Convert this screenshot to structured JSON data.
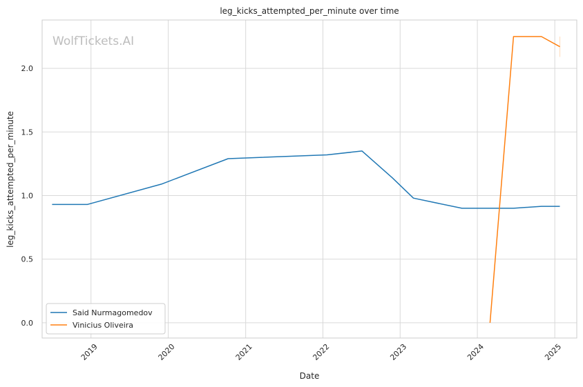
{
  "chart_data": {
    "type": "line",
    "title": "leg_kicks_attempted_per_minute over time",
    "xlabel": "Date",
    "ylabel": "leg_kicks_attempted_per_minute",
    "watermark": "WolfTickets.AI",
    "x_ticks": [
      "2019",
      "2020",
      "2021",
      "2022",
      "2023",
      "2024",
      "2025"
    ],
    "y_ticks": [
      "0.0",
      "0.5",
      "1.0",
      "1.5",
      "2.0"
    ],
    "ylim": [
      -0.12,
      2.38
    ],
    "xlim": [
      "2018-05-15",
      "2025-04-15"
    ],
    "grid": true,
    "legend_position": "lower-left",
    "series": [
      {
        "name": "Said Nurmagomedov",
        "color": "#1f77b4",
        "points": [
          {
            "x": "2018-07-01",
            "y": 0.93
          },
          {
            "x": "2018-12-15",
            "y": 0.93
          },
          {
            "x": "2019-11-30",
            "y": 1.09
          },
          {
            "x": "2020-10-10",
            "y": 1.29
          },
          {
            "x": "2022-01-20",
            "y": 1.32
          },
          {
            "x": "2022-07-05",
            "y": 1.35
          },
          {
            "x": "2022-11-25",
            "y": 1.14
          },
          {
            "x": "2023-03-05",
            "y": 0.98
          },
          {
            "x": "2023-10-20",
            "y": 0.9
          },
          {
            "x": "2024-06-20",
            "y": 0.9
          },
          {
            "x": "2024-10-30",
            "y": 0.915
          },
          {
            "x": "2025-01-25",
            "y": 0.915
          }
        ]
      },
      {
        "name": "Vinicius Oliveira",
        "color": "#ff7f0e",
        "points": [
          {
            "x": "2024-03-01",
            "y": 0.0
          },
          {
            "x": "2024-06-20",
            "y": 2.25
          },
          {
            "x": "2024-10-30",
            "y": 2.25
          },
          {
            "x": "2025-01-25",
            "y": 2.17
          }
        ]
      }
    ]
  }
}
